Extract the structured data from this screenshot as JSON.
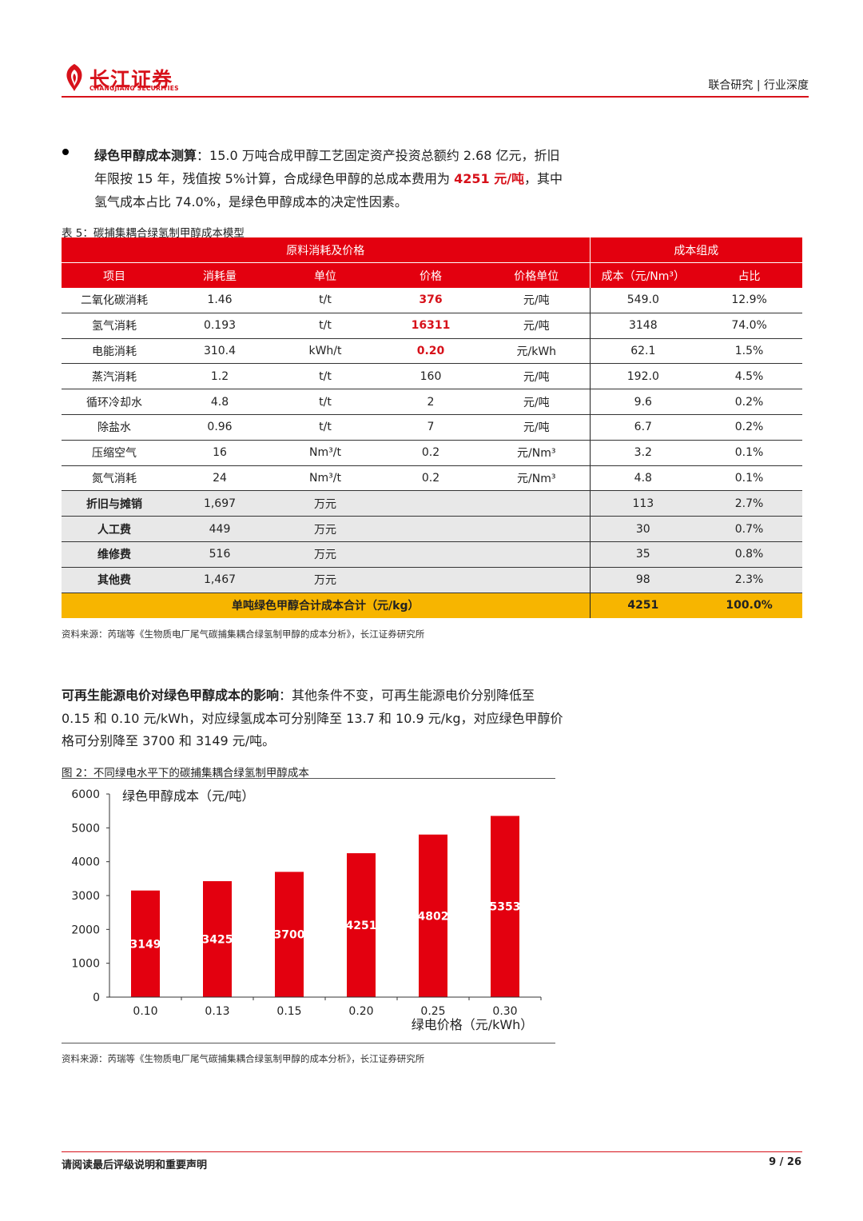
{
  "header": {
    "brand_cn": "长江证券",
    "brand_en": "CHANGJIANG SECURITIES",
    "section": "联合研究 | 行业深度"
  },
  "para1": {
    "lead": "绿色甲醇成本测算",
    "text_a": "：15.0 万吨合成甲醇工艺固定资产投资总额约 2.68 亿元，折旧年限按 15 年，残值按 5%计算，合成绿色甲醇的总成本费用为 ",
    "highlight": "4251 元/吨",
    "text_b": "，其中氢气成本占比 74.0%，是绿色甲醇成本的决定性因素。"
  },
  "table": {
    "caption": "表 5：碳捕集耦合绿氢制甲醇成本模型",
    "group_left": "原料消耗及价格",
    "group_right": "成本组成",
    "headers": [
      "项目",
      "消耗量",
      "单位",
      "价格",
      "价格单位",
      "成本（元/Nm³）",
      "占比"
    ],
    "rows": [
      {
        "item": "二氧化碳消耗",
        "qty": "1.46",
        "unit": "t/t",
        "price": "376",
        "price_unit": "元/吨",
        "cost": "549.0",
        "share": "12.9%"
      },
      {
        "item": "氢气消耗",
        "qty": "0.193",
        "unit": "t/t",
        "price": "16311",
        "price_unit": "元/吨",
        "cost": "3148",
        "share": "74.0%"
      },
      {
        "item": "电能消耗",
        "qty": "310.4",
        "unit": "kWh/t",
        "price": "0.20",
        "price_unit": "元/kWh",
        "cost": "62.1",
        "share": "1.5%"
      },
      {
        "item": "蒸汽消耗",
        "qty": "1.2",
        "unit": "t/t",
        "price": "160",
        "price_unit": "元/吨",
        "cost": "192.0",
        "share": "4.5%"
      },
      {
        "item": "循环冷却水",
        "qty": "4.8",
        "unit": "t/t",
        "price": "2",
        "price_unit": "元/吨",
        "cost": "9.6",
        "share": "0.2%"
      },
      {
        "item": "除盐水",
        "qty": "0.96",
        "unit": "t/t",
        "price": "7",
        "price_unit": "元/吨",
        "cost": "6.7",
        "share": "0.2%"
      },
      {
        "item": "压缩空气",
        "qty": "16",
        "unit": "Nm³/t",
        "price": "0.2",
        "price_unit": "元/Nm³",
        "cost": "3.2",
        "share": "0.1%"
      },
      {
        "item": "氮气消耗",
        "qty": "24",
        "unit": "Nm³/t",
        "price": "0.2",
        "price_unit": "元/Nm³",
        "cost": "4.8",
        "share": "0.1%"
      }
    ],
    "grey_rows": [
      {
        "item": "折旧与摊销",
        "qty": "1,697",
        "unit": "万元",
        "cost": "113",
        "share": "2.7%"
      },
      {
        "item": "人工费",
        "qty": "449",
        "unit": "万元",
        "cost": "30",
        "share": "0.7%"
      },
      {
        "item": "维修费",
        "qty": "516",
        "unit": "万元",
        "cost": "35",
        "share": "0.8%"
      },
      {
        "item": "其他费",
        "qty": "1,467",
        "unit": "万元",
        "cost": "98",
        "share": "2.3%"
      }
    ],
    "total": {
      "label": "单吨绿色甲醇合计成本合计（元/kg）",
      "cost": "4251",
      "share": "100.0%"
    },
    "source": "资料来源：芮瑞等《生物质电厂尾气碳捕集耦合绿氢制甲醇的成本分析》，长江证券研究所"
  },
  "para2": {
    "lead": "可再生能源电价对绿色甲醇成本的影响",
    "text": "：其他条件不变，可再生能源电价分别降低至 0.15 和 0.10 元/kWh，对应绿氢成本可分别降至 13.7 和 10.9 元/kg，对应绿色甲醇价格可分别降至 3700 和 3149 元/吨。"
  },
  "figure": {
    "caption": "图 2：不同绿电水平下的碳捕集耦合绿氢制甲醇成本",
    "source": "资料来源：芮瑞等《生物质电厂尾气碳捕集耦合绿氢制甲醇的成本分析》，长江证券研究所"
  },
  "chart_data": {
    "type": "bar",
    "categories": [
      "0.10",
      "0.13",
      "0.15",
      "0.20",
      "0.25",
      "0.30"
    ],
    "values": [
      3149,
      3425,
      3700,
      4251,
      4802,
      5353
    ],
    "series": [
      {
        "name": "绿色甲醇成本（元/吨）",
        "values": [
          3149,
          3425,
          3700,
          4251,
          4802,
          5353
        ]
      }
    ],
    "xlabel": "绿电价格（元/kWh）",
    "ylabel": "",
    "ylim": [
      0,
      6000
    ],
    "yticks": [
      0,
      1000,
      2000,
      3000,
      4000,
      5000,
      6000
    ],
    "bar_color": "#e3000f",
    "data_labels": true,
    "grid": false,
    "legend": "top-left"
  },
  "footer": {
    "left": "请阅读最后评级说明和重要声明",
    "page": "9 / 26"
  }
}
